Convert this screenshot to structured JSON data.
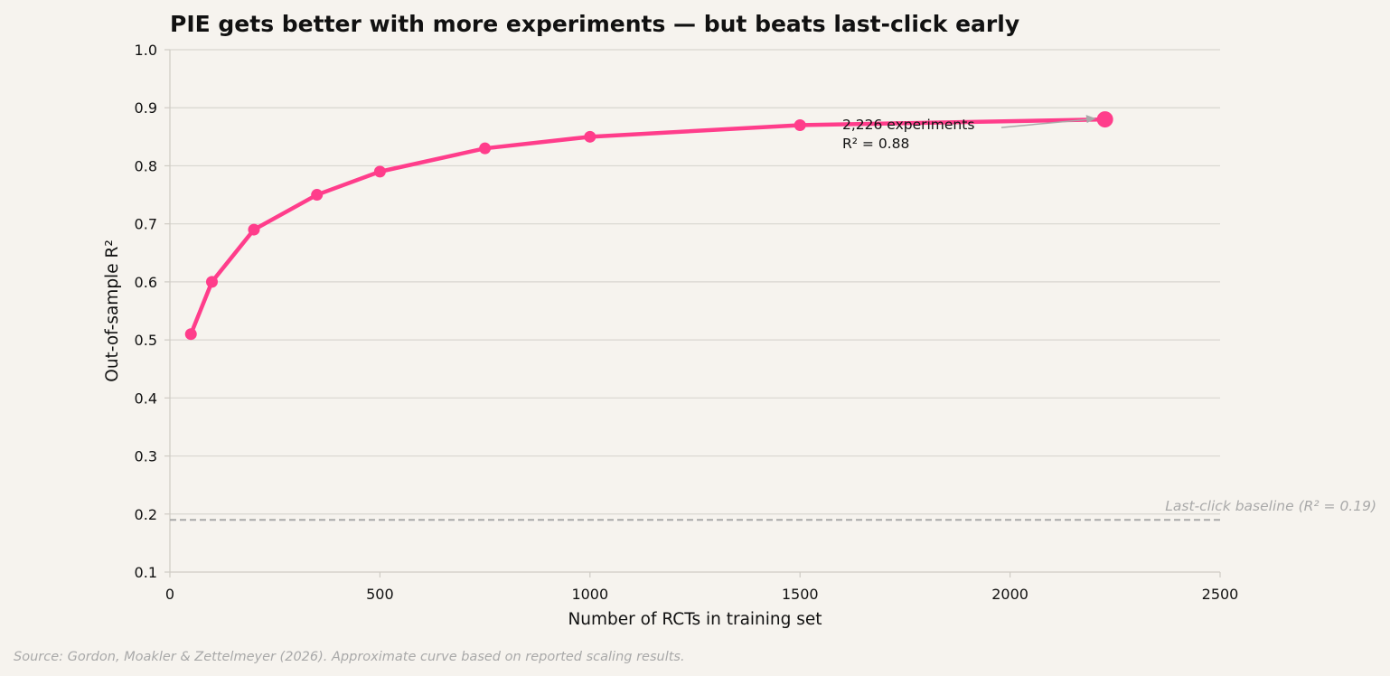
{
  "chart_data": {
    "type": "line",
    "title": "PIE gets better with more experiments — but beats last-click early",
    "xlabel": "Number of RCTs in training set",
    "ylabel": "Out-of-sample R²",
    "xlim": [
      0,
      2500
    ],
    "ylim": [
      0.1,
      1.0
    ],
    "xticks": [
      0,
      500,
      1000,
      1500,
      2000,
      2500
    ],
    "xtick_labels": [
      "0",
      "500",
      "1000",
      "1500",
      "2000",
      "2500"
    ],
    "yticks": [
      0.1,
      0.2,
      0.3,
      0.4,
      0.5,
      0.6,
      0.7,
      0.8,
      0.9,
      1.0
    ],
    "ytick_labels": [
      "0.1",
      "0.2",
      "0.3",
      "0.4",
      "0.5",
      "0.6",
      "0.7",
      "0.8",
      "0.9",
      "1.0"
    ],
    "grid": "horizontal",
    "series": [
      {
        "color": "#ff3d8b",
        "x": [
          50,
          100,
          200,
          350,
          500,
          750,
          1000,
          1500,
          2226
        ],
        "y": [
          0.51,
          0.6,
          0.69,
          0.75,
          0.79,
          0.83,
          0.85,
          0.87,
          0.88
        ]
      }
    ],
    "highlight_point": {
      "x": 2226,
      "y": 0.88
    },
    "annotation": {
      "line1": "2,226 experiments",
      "line2": "R² = 0.88",
      "arrow_color": "#a9a9a9"
    },
    "baseline": {
      "y": 0.19,
      "label": "Last-click baseline (R² = 0.19)",
      "style": "dashed",
      "color": "#a9a9a9"
    }
  },
  "source_note": "Source: Gordon, Moakler & Zettelmeyer (2026). Approximate curve based on reported scaling results.",
  "colors": {
    "background": "#f6f3ee",
    "grid": "#d9d6d0",
    "accent": "#ff3d8b",
    "muted": "#a9a9a9"
  }
}
